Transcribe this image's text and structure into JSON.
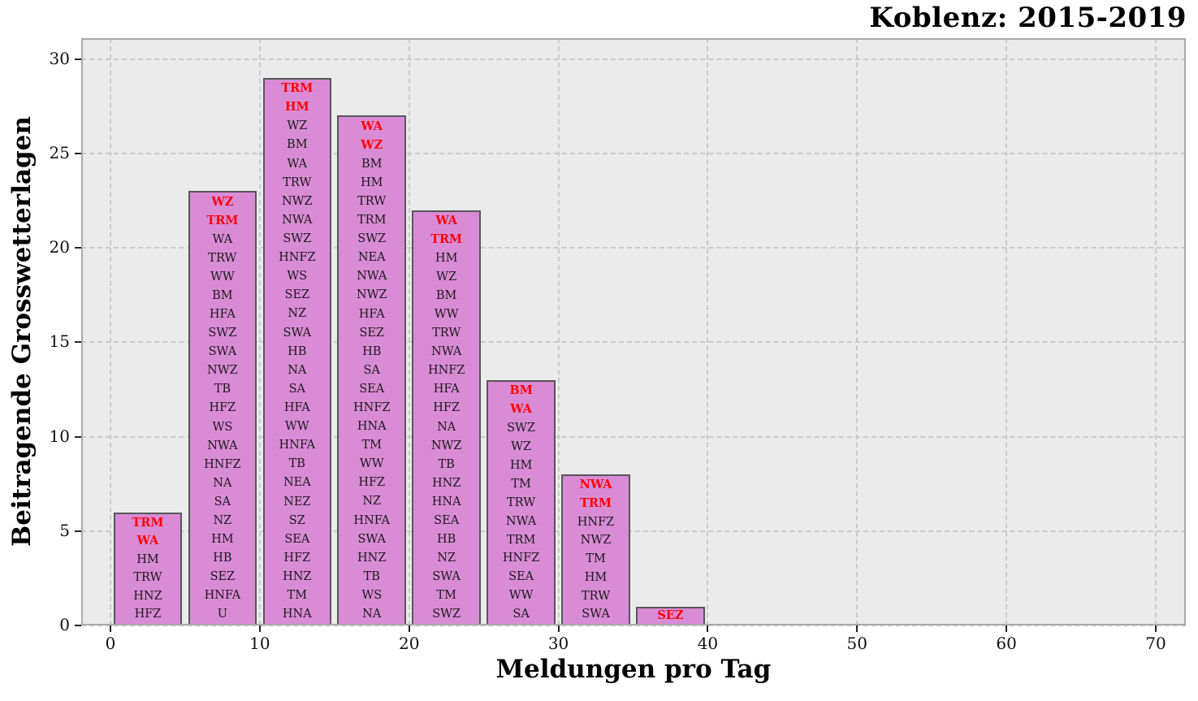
{
  "title": "Koblenz: 2015-2019",
  "xlabel": "Meldungen pro Tag",
  "ylabel": "Beitragende Grosswetterlagen",
  "chart_data": {
    "type": "bar",
    "title": "Koblenz: 2015-2019",
    "xlabel": "Meldungen pro Tag",
    "ylabel": "Beitragende Grosswetterlagen",
    "xlim": [
      -2,
      72
    ],
    "ylim": [
      0,
      31.1
    ],
    "x_ticks": [
      0,
      10,
      20,
      30,
      40,
      50,
      60,
      70
    ],
    "y_ticks": [
      0,
      5,
      10,
      15,
      20,
      25,
      30
    ],
    "grid": "dashed",
    "legend": "none",
    "bin_width": 5,
    "bars": [
      {
        "bin_start": 0,
        "bin_end": 5,
        "count": 6,
        "highlight_count": 2,
        "labels": [
          "TRM",
          "WA",
          "HM",
          "TRW",
          "HNZ",
          "HFZ"
        ]
      },
      {
        "bin_start": 5,
        "bin_end": 10,
        "count": 23,
        "highlight_count": 2,
        "labels": [
          "WZ",
          "TRM",
          "WA",
          "TRW",
          "WW",
          "BM",
          "HFA",
          "SWZ",
          "SWA",
          "NWZ",
          "TB",
          "HFZ",
          "WS",
          "NWA",
          "HNFZ",
          "NA",
          "SA",
          "NZ",
          "HM",
          "HB",
          "SEZ",
          "HNFA",
          "U"
        ]
      },
      {
        "bin_start": 10,
        "bin_end": 15,
        "count": 29,
        "highlight_count": 2,
        "labels": [
          "TRM",
          "HM",
          "WZ",
          "BM",
          "WA",
          "TRW",
          "NWZ",
          "NWA",
          "SWZ",
          "HNFZ",
          "WS",
          "SEZ",
          "NZ",
          "SWA",
          "HB",
          "NA",
          "SA",
          "HFA",
          "WW",
          "HNFA",
          "TB",
          "NEA",
          "NEZ",
          "SZ",
          "SEA",
          "HFZ",
          "HNZ",
          "TM",
          "HNA"
        ]
      },
      {
        "bin_start": 15,
        "bin_end": 20,
        "count": 27,
        "highlight_count": 2,
        "labels": [
          "WA",
          "WZ",
          "BM",
          "HM",
          "TRW",
          "TRM",
          "SWZ",
          "NEA",
          "NWA",
          "NWZ",
          "HFA",
          "SEZ",
          "HB",
          "SA",
          "SEA",
          "HNFZ",
          "HNA",
          "TM",
          "WW",
          "HFZ",
          "NZ",
          "HNFA",
          "SWA",
          "HNZ",
          "TB",
          "WS",
          "NA"
        ]
      },
      {
        "bin_start": 20,
        "bin_end": 25,
        "count": 22,
        "highlight_count": 2,
        "labels": [
          "WA",
          "TRM",
          "HM",
          "WZ",
          "BM",
          "WW",
          "TRW",
          "NWA",
          "HNFZ",
          "HFA",
          "HFZ",
          "NA",
          "NWZ",
          "TB",
          "HNZ",
          "HNA",
          "SEA",
          "HB",
          "NZ",
          "SWA",
          "TM",
          "SWZ"
        ]
      },
      {
        "bin_start": 25,
        "bin_end": 30,
        "count": 13,
        "highlight_count": 2,
        "labels": [
          "BM",
          "WA",
          "SWZ",
          "WZ",
          "HM",
          "TM",
          "TRW",
          "NWA",
          "TRM",
          "HNFZ",
          "SEA",
          "WW",
          "SA"
        ]
      },
      {
        "bin_start": 30,
        "bin_end": 35,
        "count": 8,
        "highlight_count": 2,
        "labels": [
          "NWA",
          "TRM",
          "HNFZ",
          "NWZ",
          "TM",
          "HM",
          "TRW",
          "SWA"
        ]
      },
      {
        "bin_start": 35,
        "bin_end": 40,
        "count": 1,
        "highlight_count": 1,
        "labels": [
          "SEZ"
        ]
      }
    ],
    "colors": {
      "bar_fill": "#d98bd5",
      "bar_edge": "#575757",
      "highlight_text": "#fe0000",
      "label_text": "#1a1a1a",
      "plot_bg": "#ebebeb",
      "grid": "#c9c9c9",
      "frame": "#aaaaaa"
    }
  }
}
